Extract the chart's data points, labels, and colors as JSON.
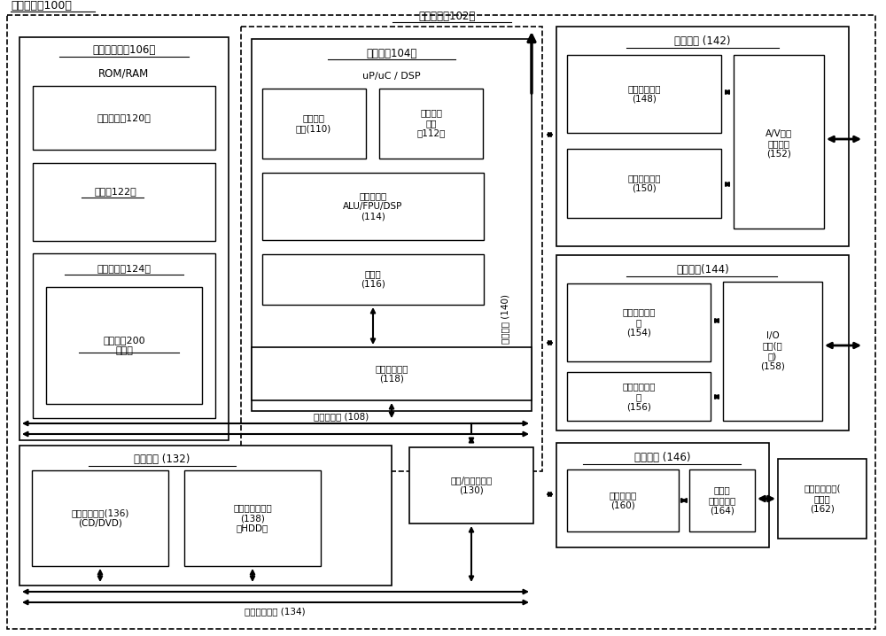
{
  "labels": {
    "outer": "计算设备（100）",
    "basic": "基本配置（102）",
    "sysmem": "系统存储器（106）",
    "romram": "ROM/RAM",
    "os": "操作系统（120）",
    "app": "应用（122）",
    "prog": "程序数据（124）",
    "exec": "执行方法200\n的指令",
    "proc": "处理器（104）",
    "upuc": "uP/uC / DSP",
    "l1": "一级高速\n缓存(110)",
    "l2": "二级高速\n缓存\n（112）",
    "core": "处理器核心\nALU/FPU/DSP\n(114)",
    "reg": "寄存器\n(116)",
    "memctrl": "存储器控制器\n(118)",
    "membus": "存储器总线 (108)",
    "storage": "儲存设备 (132)",
    "removable": "可移除存储器(136)\n(CD/DVD)",
    "fixed": "不可移除存储器\n(138)\n（HDD）",
    "busctrl": "总线/接口控制器\n(130)",
    "stobus": "儲存接口总线 (134)",
    "intbus": "接口总线 (140)",
    "output": "输出设备 (142)",
    "img": "图像处理单元\n(148)",
    "aud": "音频处理单元\n(150)",
    "avport": "A/V端口\n（多个）\n(152)",
    "periph": "外围接口(144)",
    "serial": "串行接口控制\n器\n(154)",
    "parallel": "并行接口控制\n器\n(156)",
    "ioport": "I/O\n端口(多\n个)\n(158)",
    "comm": "通信设备 (146)",
    "netctrl": "网络控制器\n(160)",
    "commport": "通信端\n口（多个）\n(164)",
    "othercomp": "其他计算设备(\n多个）\n(162)"
  }
}
